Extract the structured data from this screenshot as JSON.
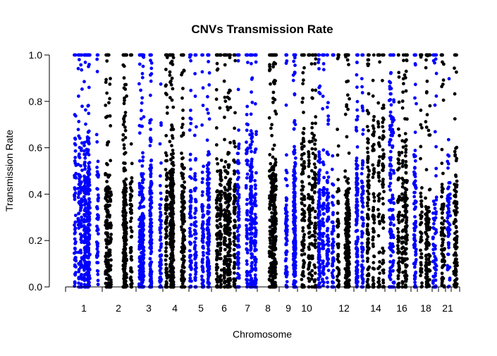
{
  "chart_data": {
    "type": "scatter",
    "title": "CNVs Transmission Rate",
    "xlabel": "Chromosome",
    "ylabel": "Transmission Rate",
    "ylim": [
      0,
      1
    ],
    "y_ticks": [
      "0.0",
      "0.2",
      "0.4",
      "0.6",
      "0.8",
      "1.0"
    ],
    "x_tick_labels": [
      "1",
      "2",
      "3",
      "4",
      "5",
      "6",
      "7",
      "8",
      "9",
      "10",
      "12",
      "14",
      "16",
      "18",
      "21"
    ],
    "chromosomes": [
      "1",
      "2",
      "3",
      "4",
      "5",
      "6",
      "7",
      "8",
      "9",
      "10",
      "11",
      "12",
      "13",
      "14",
      "15",
      "16",
      "17",
      "18",
      "19",
      "20",
      "21",
      "22"
    ],
    "labeled_chromosomes": [
      "1",
      "2",
      "3",
      "4",
      "5",
      "6",
      "7",
      "8",
      "9",
      "10",
      "12",
      "14",
      "16",
      "18",
      "21"
    ],
    "alternating_colors": [
      "#0000ff",
      "#000000"
    ],
    "grid": false,
    "legend": "none",
    "point_density_note": "Each chromosome shows thousands of points; dense vertical streaks concentrated at 0.0-0.5 with scattered points up to 1.0 and many at exactly 1.0 and 0.0."
  }
}
